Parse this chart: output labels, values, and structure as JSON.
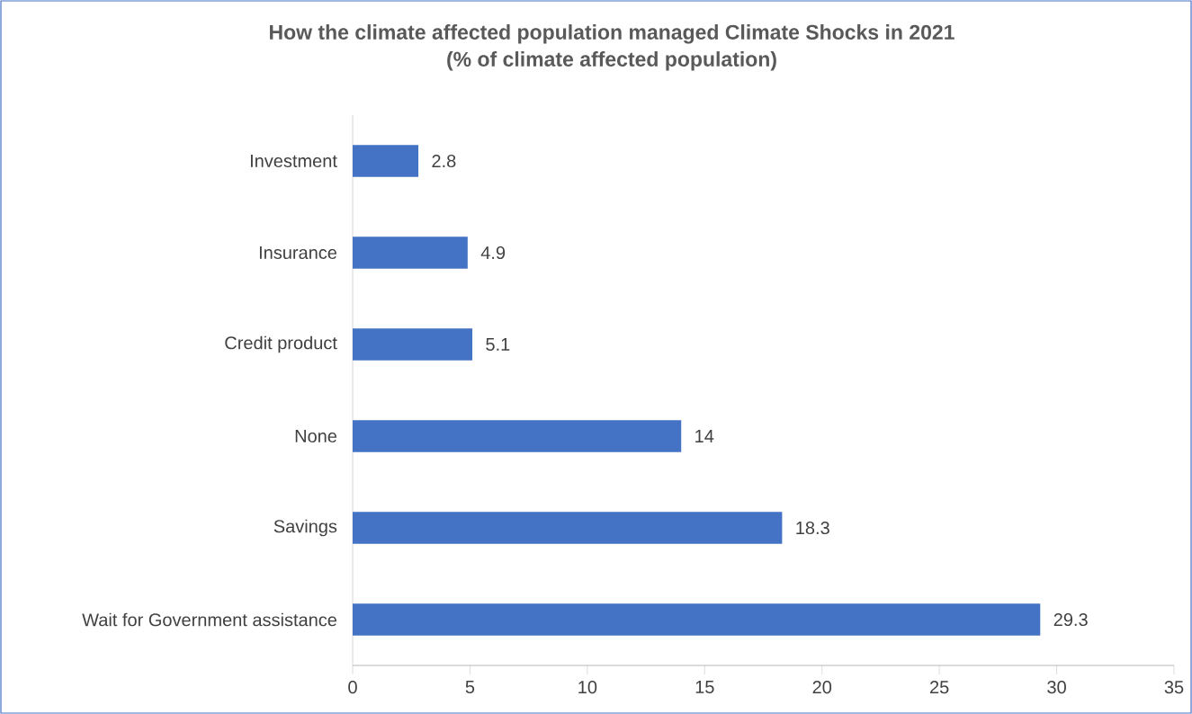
{
  "chart_data": {
    "type": "bar",
    "orientation": "horizontal",
    "title": "How the climate affected population managed  Climate Shocks in 2021",
    "subtitle": "(% of climate affected population)",
    "categories": [
      "Investment",
      "Insurance",
      "Credit product",
      "None",
      "Savings",
      "Wait for Government assistance"
    ],
    "values": [
      2.8,
      4.9,
      5.1,
      14,
      18.3,
      29.3
    ],
    "color": "#4472c4",
    "xlim": [
      0,
      35
    ],
    "xticks": [
      0,
      5,
      10,
      15,
      20,
      25,
      30,
      35
    ],
    "data_labels": true,
    "grid": false
  }
}
